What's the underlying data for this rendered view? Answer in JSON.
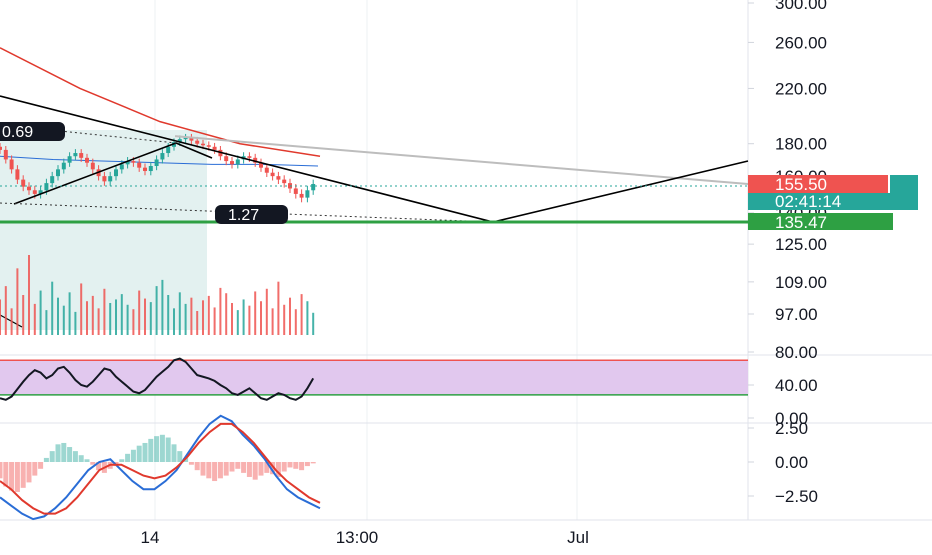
{
  "chart_data": [
    {
      "type": "line",
      "panel": "price",
      "yscale": "log",
      "yticks": [
        300.0,
        260.0,
        220.0,
        180.0,
        160.0,
        140.0,
        125.0,
        109.0,
        97.0
      ],
      "ytick_labels": [
        "300.00",
        "260.00",
        "220.00",
        "180.00",
        "160.00",
        "140.00",
        "125.00",
        "109.00",
        "97.00"
      ],
      "x_tick_labels": [
        "14",
        "13:00",
        "Jul"
      ],
      "price_series": [
        {
          "name": "close",
          "values": [
            176,
            170,
            164,
            158,
            154,
            152,
            150,
            152,
            156,
            160,
            164,
            168,
            172,
            174,
            171,
            168,
            164,
            160,
            157,
            160,
            164,
            167,
            169,
            168,
            165,
            163,
            166,
            170,
            174,
            178,
            181,
            183,
            184,
            182,
            180,
            179,
            178,
            176,
            172,
            169,
            167,
            170,
            172,
            171,
            168,
            165,
            162,
            160,
            158,
            156,
            153,
            150,
            148,
            152,
            155.5
          ]
        }
      ],
      "moving_averages": [
        {
          "color": "#e0392d",
          "values": [
            255,
            220,
            195,
            180,
            172
          ]
        },
        {
          "color": "#2a6dd6",
          "values": [
            172,
            170,
            169,
            168,
            167,
            167,
            166
          ]
        }
      ],
      "current_price": {
        "value": "155.50",
        "countdown": "02:41:14",
        "color": "#ef5350"
      },
      "support": {
        "value": "135.47",
        "color": "#2ea043"
      },
      "annotations": [
        "0.69",
        "1.27"
      ],
      "shading_color": "#e3f1f0",
      "colors": {
        "up": "#26a69a",
        "down": "#ef5350",
        "pattern_line": "#000000",
        "trend_line": "#bdbdbd"
      }
    },
    {
      "type": "bar",
      "panel": "volume",
      "values": [
        40,
        55,
        30,
        75,
        45,
        90,
        35,
        50,
        28,
        60,
        42,
        33,
        48,
        26,
        58,
        38,
        44,
        30,
        52,
        36,
        40,
        46,
        34,
        29,
        50,
        41,
        37,
        55,
        62,
        45,
        30,
        48,
        35,
        42,
        27,
        39,
        44,
        31,
        53,
        47,
        36,
        28,
        40,
        33,
        49,
        38,
        52,
        30,
        60,
        34,
        42,
        29,
        46,
        38,
        25
      ]
    },
    {
      "type": "line",
      "panel": "rsi",
      "yticks": [
        80.0,
        40.0,
        0.0
      ],
      "ytick_labels": [
        "80.00",
        "40.00",
        "0.00"
      ],
      "band": [
        28,
        70
      ],
      "band_color": "#e1c8ee",
      "upper_line_color": "#ef5350",
      "lower_line_color": "#2ea043",
      "values": [
        24,
        22,
        26,
        35,
        44,
        52,
        58,
        55,
        48,
        52,
        60,
        62,
        55,
        46,
        40,
        38,
        44,
        52,
        60,
        58,
        50,
        44,
        38,
        32,
        30,
        34,
        42,
        50,
        56,
        62,
        70,
        72,
        68,
        60,
        52,
        50,
        48,
        45,
        40,
        36,
        30,
        28,
        32,
        36,
        30,
        24,
        22,
        26,
        30,
        28,
        24,
        22,
        26,
        36,
        48
      ]
    },
    {
      "type": "bar",
      "panel": "macd",
      "yticks": [
        2.5,
        0.0,
        -2.5
      ],
      "ytick_labels": [
        "2.50",
        "0.00",
        "−2.50"
      ],
      "histogram": [
        -1.2,
        -1.8,
        -2.1,
        -2.2,
        -1.9,
        -1.5,
        -1.0,
        -0.5,
        0.3,
        0.8,
        1.3,
        1.4,
        1.1,
        0.8,
        0.5,
        0.2,
        -0.2,
        -0.6,
        -0.8,
        -0.5,
        -0.3,
        0.2,
        0.6,
        0.9,
        1.2,
        1.4,
        1.7,
        1.9,
        2.0,
        1.8,
        1.3,
        0.8,
        0.3,
        -0.2,
        -0.6,
        -1.0,
        -1.2,
        -1.4,
        -1.2,
        -1.0,
        -0.7,
        -0.5,
        -0.8,
        -1.1,
        -1.3,
        -1.0,
        -0.8,
        -0.9,
        -1.1,
        -0.7,
        -0.4,
        -0.5,
        -0.6,
        -0.3,
        -0.1
      ],
      "macd_line": [
        -2.6,
        -3.2,
        -3.8,
        -4.2,
        -4.0,
        -3.4,
        -2.6,
        -1.6,
        -0.6,
        0.0,
        0.2,
        -0.6,
        -1.4,
        -2.0,
        -2.0,
        -1.4,
        -0.6,
        0.6,
        1.8,
        2.8,
        3.4,
        3.0,
        2.0,
        1.2,
        0.2,
        -1.0,
        -2.0,
        -2.6,
        -3.0,
        -3.4
      ],
      "signal_line": [
        -1.4,
        -2.0,
        -2.8,
        -3.4,
        -3.8,
        -3.8,
        -3.4,
        -2.6,
        -1.6,
        -0.6,
        -0.2,
        -0.2,
        -0.6,
        -1.0,
        -1.2,
        -1.0,
        -0.4,
        0.4,
        1.4,
        2.2,
        2.8,
        2.8,
        2.2,
        1.4,
        0.4,
        -0.6,
        -1.4,
        -2.0,
        -2.6,
        -3.0
      ],
      "macd_color": "#2a6dd6",
      "signal_color": "#e0392d",
      "hist_pos_color": "#26a69a",
      "hist_neg_color": "#ef5350"
    }
  ]
}
